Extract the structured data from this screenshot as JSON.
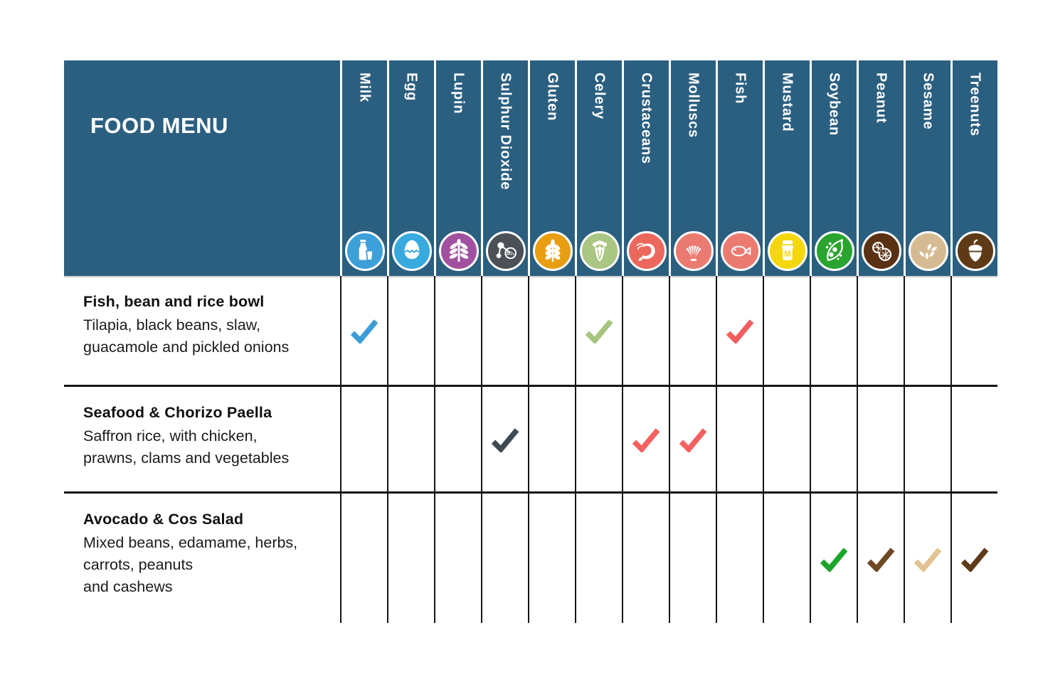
{
  "table": {
    "title": "FOOD MENU",
    "allergens": [
      {
        "name": "Milk",
        "icon": "milk-icon",
        "color": "#3DA0D9",
        "check_color": "#3B9CD9"
      },
      {
        "name": "Egg",
        "icon": "egg-icon",
        "color": "#38AADE",
        "check_color": "#38AADE"
      },
      {
        "name": "Lupin",
        "icon": "lupin-icon",
        "color": "#A1519F",
        "check_color": "#A1519F"
      },
      {
        "name": "Sulphur Dioxide",
        "icon": "sulphur-dioxide-icon",
        "color": "#4B5157",
        "check_color": "#3C4A55",
        "icon_text": "SO₂"
      },
      {
        "name": "Gluten",
        "icon": "gluten-icon",
        "color": "#E89E10",
        "check_color": "#E89E10"
      },
      {
        "name": "Celery",
        "icon": "celery-icon",
        "color": "#A9C682",
        "check_color": "#A5C47E"
      },
      {
        "name": "Crustaceans",
        "icon": "crustaceans-icon",
        "color": "#EC685D",
        "check_color": "#F56060"
      },
      {
        "name": "Molluscs",
        "icon": "molluscs-icon",
        "color": "#EB7A71",
        "check_color": "#F56060"
      },
      {
        "name": "Fish",
        "icon": "fish-icon",
        "color": "#EB7A71",
        "check_color": "#F15E5E"
      },
      {
        "name": "Mustard",
        "icon": "mustard-icon",
        "color": "#F4D70F",
        "check_color": "#F4D70F",
        "icon_text": "M"
      },
      {
        "name": "Soybean",
        "icon": "soybean-icon",
        "color": "#2AA42F",
        "check_color": "#1CA52B"
      },
      {
        "name": "Peanut",
        "icon": "peanut-icon",
        "color": "#5A3113",
        "check_color": "#6E4724"
      },
      {
        "name": "Sesame",
        "icon": "sesame-icon",
        "color": "#D6BB92",
        "check_color": "#E2C492"
      },
      {
        "name": "Treenuts",
        "icon": "treenuts-icon",
        "color": "#5E3B16",
        "check_color": "#5F3B18"
      }
    ],
    "rows": [
      {
        "name": "Fish, bean and rice bowl",
        "description": "Tilapia, black beans, slaw,\nguacamole and pickled onions",
        "allergens": [
          "Milk",
          "Celery",
          "Fish"
        ]
      },
      {
        "name": "Seafood & Chorizo Paella",
        "description": "Saffron rice, with chicken,\nprawns, clams and vegetables",
        "allergens": [
          "Sulphur Dioxide",
          "Crustaceans",
          "Molluscs"
        ]
      },
      {
        "name": "Avocado & Cos Salad",
        "description": "Mixed beans, edamame, herbs,\ncarrots, peanuts\nand cashews",
        "allergens": [
          "Soybean",
          "Peanut",
          "Sesame",
          "Treenuts"
        ]
      }
    ]
  },
  "colors": {
    "header_bg": "#2B5F80",
    "header_text": "#FFFFFF",
    "body_text": "#1B1B1B",
    "grid_line": "#151515"
  }
}
